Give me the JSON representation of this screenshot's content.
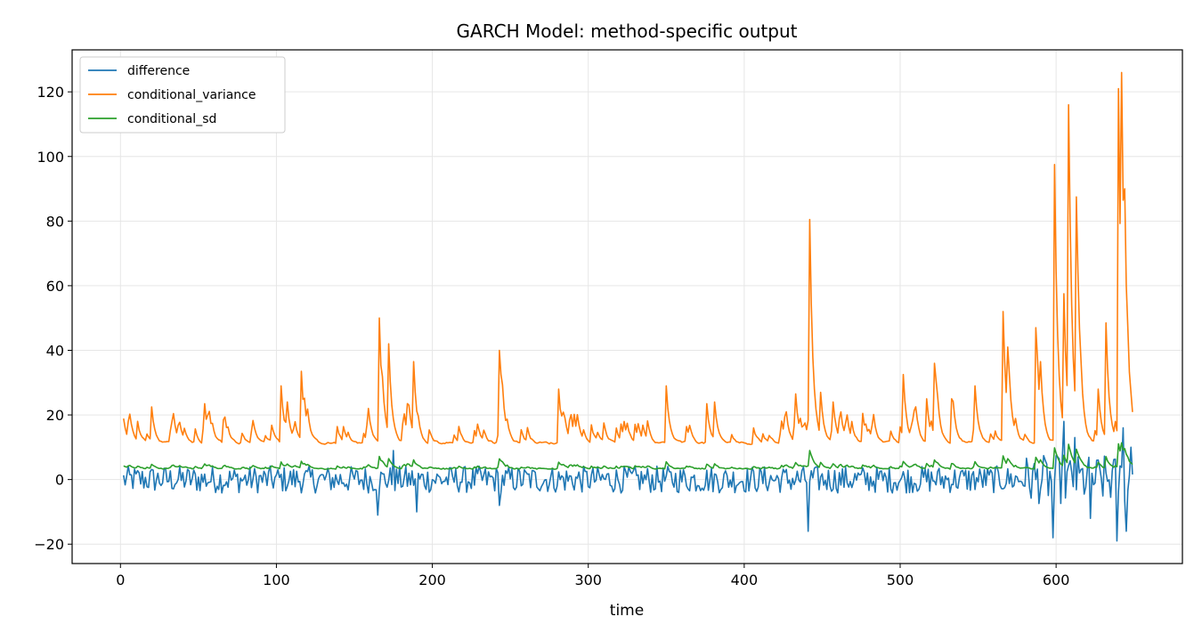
{
  "chart_data": {
    "type": "line",
    "title": "GARCH Model: method-specific output",
    "xlabel": "time",
    "ylabel": "",
    "xlim": [
      -31,
      681
    ],
    "ylim": [
      -26,
      133
    ],
    "xticks": [
      0,
      100,
      200,
      300,
      400,
      500,
      600
    ],
    "xtick_labels": [
      "0",
      "100",
      "200",
      "300",
      "400",
      "500",
      "600"
    ],
    "yticks": [
      -20,
      0,
      20,
      40,
      60,
      80,
      100,
      120
    ],
    "ytick_labels": [
      "−20",
      "0",
      "20",
      "40",
      "60",
      "80",
      "100",
      "120"
    ],
    "grid": true,
    "legend_position": "top-left",
    "x_start": 2,
    "x_end": 649,
    "series": [
      {
        "name": "difference",
        "color": "#1f77b4",
        "baseline": 0,
        "noise_scale": 3,
        "spikes": [
          [
            165,
            -11
          ],
          [
            175,
            9
          ],
          [
            190,
            -10
          ],
          [
            243,
            -8
          ],
          [
            441,
            -16
          ],
          [
            598,
            -18
          ],
          [
            605,
            18
          ],
          [
            612,
            13
          ],
          [
            622,
            -12
          ],
          [
            639,
            -19
          ],
          [
            643,
            16
          ],
          [
            645,
            -16
          ],
          [
            648,
            10
          ]
        ]
      },
      {
        "name": "conditional_variance",
        "color": "#ff7f0e",
        "baseline": 10.5,
        "start_value": 17,
        "spikes": [
          [
            20,
            22.5
          ],
          [
            54,
            23.5
          ],
          [
            66,
            18.5
          ],
          [
            103,
            29
          ],
          [
            107,
            24
          ],
          [
            116,
            33.5
          ],
          [
            159,
            22
          ],
          [
            166,
            50
          ],
          [
            172,
            42
          ],
          [
            184,
            23.5
          ],
          [
            188,
            36.5
          ],
          [
            243,
            40
          ],
          [
            281,
            28
          ],
          [
            350,
            29
          ],
          [
            376,
            23.5
          ],
          [
            381,
            24
          ],
          [
            433,
            26.5
          ],
          [
            442,
            80.5
          ],
          [
            449,
            27
          ],
          [
            457,
            24
          ],
          [
            476,
            20.5
          ],
          [
            502,
            32.5
          ],
          [
            517,
            25
          ],
          [
            522,
            36
          ],
          [
            533,
            25
          ],
          [
            548,
            29
          ],
          [
            566,
            52
          ],
          [
            569,
            41
          ],
          [
            587,
            47
          ],
          [
            590,
            36.5
          ],
          [
            599,
            97.5
          ],
          [
            605,
            57.5
          ],
          [
            608,
            116
          ],
          [
            613,
            87.5
          ],
          [
            627,
            28
          ],
          [
            632,
            48.5
          ],
          [
            640,
            121
          ],
          [
            642,
            126
          ],
          [
            644,
            90
          ],
          [
            648,
            27
          ]
        ]
      },
      {
        "name": "conditional_sd",
        "color": "#2ca02c",
        "derived_from": "conditional_variance",
        "transform": "sqrt"
      }
    ]
  }
}
